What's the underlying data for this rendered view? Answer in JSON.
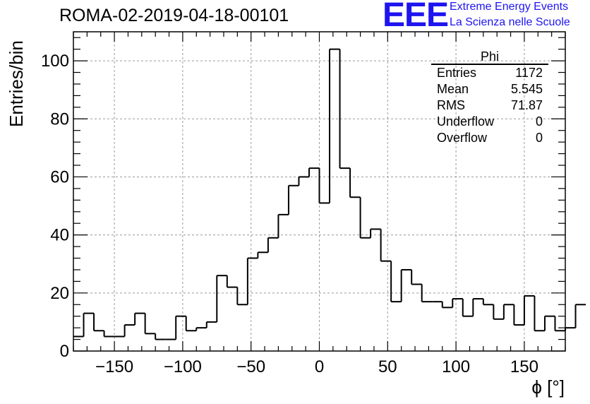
{
  "header": {
    "title": "ROMA-02-2019-04-18-00101",
    "logo_text": "EEE",
    "logo_line1": "Extreme Energy Events",
    "logo_line2": "La Scienza nelle Scuole",
    "logo_color": "#1e14f0"
  },
  "stats_box": {
    "name": "Phi",
    "rows": [
      {
        "label": "Entries",
        "value": "1172"
      },
      {
        "label": "Mean",
        "value": "5.545"
      },
      {
        "label": "RMS",
        "value": "71.87"
      },
      {
        "label": "Underflow",
        "value": "0"
      },
      {
        "label": "Overflow",
        "value": "0"
      }
    ]
  },
  "chart_data": {
    "type": "bar",
    "style": "step-histogram",
    "xlabel": "ϕ [°]",
    "ylabel": "Entries/bin",
    "xlim": [
      -180,
      180
    ],
    "ylim": [
      0,
      110
    ],
    "x_ticks": [
      -150,
      -100,
      -50,
      0,
      50,
      100,
      150
    ],
    "y_ticks": [
      0,
      20,
      40,
      60,
      80,
      100
    ],
    "x_tick_labels": [
      "−150",
      "−100",
      "−50",
      "0",
      "50",
      "100",
      "150"
    ],
    "y_tick_labels": [
      "0",
      "20",
      "40",
      "60",
      "80",
      "100"
    ],
    "grid": true,
    "bin_edges_start": -180,
    "bin_width": 7.5,
    "values": [
      5,
      13,
      7,
      5,
      5,
      9,
      13,
      6,
      4,
      4,
      12,
      7,
      8,
      10,
      26,
      22,
      16,
      32,
      34,
      39,
      47,
      57,
      60,
      63,
      51,
      104,
      63,
      53,
      39,
      42,
      31,
      17,
      28,
      23,
      17,
      17,
      15,
      18,
      12,
      18,
      16,
      11,
      16,
      9,
      19,
      7,
      12,
      7,
      8,
      16
    ]
  }
}
